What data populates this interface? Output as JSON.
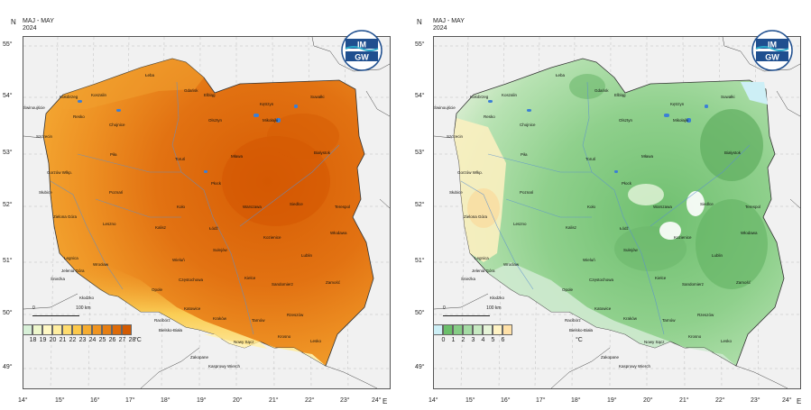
{
  "header": {
    "period": "MAJ - MAY",
    "year": "2024"
  },
  "compass": {
    "north": "N",
    "east": "E"
  },
  "lat_labels": [
    "55°",
    "54°",
    "53°",
    "52°",
    "51°",
    "50°",
    "49°"
  ],
  "lon_labels": [
    "14°",
    "15°",
    "16°",
    "17°",
    "18°",
    "19°",
    "20°",
    "21°",
    "22°",
    "23°",
    "24°"
  ],
  "logo": {
    "top": "IM",
    "bottom": "GW"
  },
  "scale": {
    "zero": "0",
    "distance": "100 km"
  },
  "left_map": {
    "legend_values": [
      "18",
      "19",
      "20",
      "21",
      "22",
      "23",
      "24",
      "25",
      "26",
      "27",
      "28"
    ],
    "legend_colors": [
      "#d8f0d8",
      "#eef7cc",
      "#fff8c4",
      "#ffeea0",
      "#ffdc6e",
      "#fcc84a",
      "#f5ac30",
      "#ef9420",
      "#e67e12",
      "#dd6a08",
      "#d25a02"
    ],
    "unit": "°C"
  },
  "right_map": {
    "legend_values": [
      "0",
      "1",
      "2",
      "3",
      "4",
      "5",
      "6"
    ],
    "legend_colors": [
      "#cdeff6",
      "#6bbf6b",
      "#86cd86",
      "#a4dba4",
      "#c6e9c1",
      "#e6f4d8",
      "#fff3c4",
      "#ffe1a8"
    ],
    "unit": "°C"
  },
  "cities": {
    "leba": "Łeba",
    "gdansk": "Gdańsk",
    "elblag": "Elbląg",
    "suwalki": "Suwałki",
    "kolobrzeg": "Kołobrzeg",
    "koszalin": "Koszalin",
    "ketrzyn": "Kętrzyn",
    "swinoujscie": "Świnoujście",
    "resko": "Resko",
    "olsztyn": "Olsztyn",
    "mikolajki": "Mikołajki",
    "chojnice": "Chojnice",
    "szczecin": "Szczecin",
    "torun": "Toruń",
    "mlawa": "Mława",
    "bialystok": "Białystok",
    "pila": "Piła",
    "gorzow": "Gorzów Wlkp.",
    "plock": "Płock",
    "slubice": "Słubice",
    "poznan": "Poznań",
    "kolo": "Koło",
    "warszawa": "Warszawa",
    "siedlce": "Siedlce",
    "terespol": "Terespol",
    "zielona": "Zielona Góra",
    "leszno": "Leszno",
    "kalisz": "Kalisz",
    "lodz": "Łódź",
    "kozienice": "Kozienice",
    "wlodawa": "Włodawa",
    "legnica": "Legnica",
    "wroclaw": "Wrocław",
    "sulejow": "Sulejów",
    "lublin": "Lublin",
    "jelenia": "Jelenia Góra",
    "slezka": "Śnieżka",
    "wielun": "Wieluń",
    "czestochowa": "Częstochowa",
    "kielce": "Kielce",
    "sandomierz": "Sandomierz",
    "zamosc": "Zamość",
    "klodzko": "Kłodzko",
    "opole": "Opole",
    "katowice": "Katowice",
    "raciborz": "Racibórz",
    "krakow": "Kraków",
    "tarnow": "Tarnów",
    "rzeszow": "Rzeszów",
    "krosno": "Krosno",
    "lesko": "Lesko",
    "bielsko": "Bielsko-Biała",
    "nowy_sacz": "Nowy Sącz",
    "zakopane": "Zakopane",
    "kasprowy": "Kasprowy Wierch"
  }
}
